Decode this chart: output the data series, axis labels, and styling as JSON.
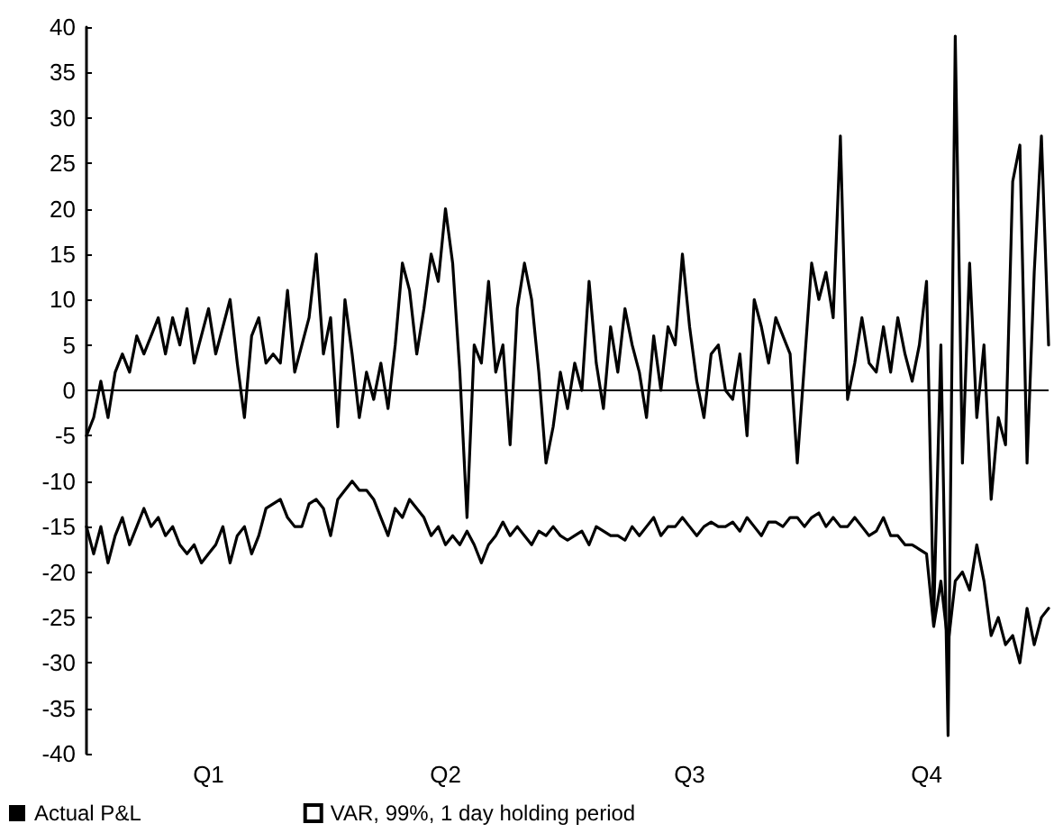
{
  "chart_data": {
    "type": "line",
    "categories": [
      null,
      null,
      null,
      null,
      null,
      null,
      null,
      null,
      null,
      null,
      null,
      null,
      null,
      null,
      null,
      null,
      null,
      "Q1",
      null,
      null,
      null,
      null,
      null,
      null,
      null,
      null,
      null,
      null,
      null,
      null,
      null,
      null,
      null,
      null,
      null,
      null,
      null,
      null,
      null,
      null,
      null,
      null,
      null,
      null,
      null,
      null,
      null,
      null,
      null,
      null,
      "Q2",
      null,
      null,
      null,
      null,
      null,
      null,
      null,
      null,
      null,
      null,
      null,
      null,
      null,
      null,
      null,
      null,
      null,
      null,
      null,
      null,
      null,
      null,
      null,
      null,
      null,
      null,
      null,
      null,
      null,
      null,
      null,
      null,
      null,
      "Q3",
      null,
      null,
      null,
      null,
      null,
      null,
      null,
      null,
      null,
      null,
      null,
      null,
      null,
      null,
      null,
      null,
      null,
      null,
      null,
      null,
      null,
      null,
      null,
      null,
      null,
      null,
      null,
      null,
      null,
      null,
      null,
      null,
      "Q4",
      null,
      null,
      null,
      null,
      null,
      null,
      null,
      null,
      null,
      null,
      null,
      null,
      null,
      null,
      null,
      null,
      null
    ],
    "ylim": [
      -40,
      40
    ],
    "yticks": [
      -40,
      -35,
      -30,
      -25,
      -20,
      -15,
      -10,
      -5,
      0,
      5,
      10,
      15,
      20,
      25,
      30,
      35,
      40
    ],
    "grid": false,
    "legend": "bottom left",
    "marker": "none",
    "line_style": "solid",
    "ref_lines": [
      {
        "axis": "y",
        "value": 0,
        "color": "#000000"
      }
    ],
    "series": [
      {
        "name": "Actual P&L",
        "color": "#000000",
        "values": [
          -5,
          -3,
          1,
          -3,
          2,
          4,
          2,
          6,
          4,
          6,
          8,
          4,
          8,
          5,
          9,
          3,
          6,
          9,
          4,
          7,
          10,
          3,
          -3,
          6,
          8,
          3,
          4,
          3,
          11,
          2,
          5,
          8,
          15,
          4,
          8,
          -4,
          10,
          4,
          -3,
          2,
          -1,
          3,
          -2,
          5,
          14,
          11,
          4,
          9,
          15,
          12,
          20,
          14,
          2,
          -14,
          5,
          3,
          12,
          2,
          5,
          -6,
          9,
          14,
          10,
          2,
          -8,
          -4,
          2,
          -2,
          3,
          0,
          12,
          3,
          -2,
          7,
          2,
          9,
          5,
          2,
          -3,
          6,
          0,
          7,
          5,
          15,
          7,
          1,
          -3,
          4,
          5,
          0,
          -1,
          4,
          -5,
          10,
          7,
          3,
          8,
          6,
          4,
          -8,
          3,
          14,
          10,
          13,
          8,
          28,
          -1,
          3,
          8,
          3,
          2,
          7,
          2,
          8,
          4,
          1,
          5,
          12,
          -25,
          5,
          -38,
          39,
          -8,
          14,
          -3,
          5,
          -12,
          -3,
          -6,
          23,
          27,
          -8,
          13,
          28,
          5
        ]
      },
      {
        "name": "VAR, 99%, 1 day holding period",
        "color": "#000000",
        "values": [
          -15,
          -18,
          -15,
          -19,
          -16,
          -14,
          -17,
          -15,
          -13,
          -15,
          -14,
          -16,
          -15,
          -17,
          -18,
          -17,
          -19,
          -18,
          -17,
          -15,
          -19,
          -16,
          -15,
          -18,
          -16,
          -13,
          -12.5,
          -12,
          -14,
          -15,
          -15,
          -12.5,
          -12,
          -13,
          -16,
          -12,
          -11,
          -10,
          -11,
          -11,
          -12,
          -14,
          -16,
          -13,
          -14,
          -12,
          -13,
          -14,
          -16,
          -15,
          -17,
          -16,
          -17,
          -15.5,
          -17,
          -19,
          -17,
          -16,
          -14.5,
          -16,
          -15,
          -16,
          -17,
          -15.5,
          -16,
          -15,
          -16,
          -16.5,
          -16,
          -15.5,
          -17,
          -15,
          -15.5,
          -16,
          -16,
          -16.5,
          -15,
          -16,
          -15,
          -14,
          -16,
          -15,
          -15,
          -14,
          -15,
          -16,
          -15,
          -14.5,
          -15,
          -15,
          -14.5,
          -15.5,
          -14,
          -15,
          -16,
          -14.5,
          -14.5,
          -15,
          -14,
          -14,
          -15,
          -14,
          -13.5,
          -15,
          -14,
          -15,
          -15,
          -14,
          -15,
          -16,
          -15.5,
          -14,
          -16,
          -16,
          -17,
          -17,
          -17.5,
          -18,
          -26,
          -21,
          -28,
          -21,
          -20,
          -22,
          -17,
          -21,
          -27,
          -25,
          -28,
          -27,
          -30,
          -24,
          -28,
          -25,
          -24
        ]
      }
    ]
  }
}
